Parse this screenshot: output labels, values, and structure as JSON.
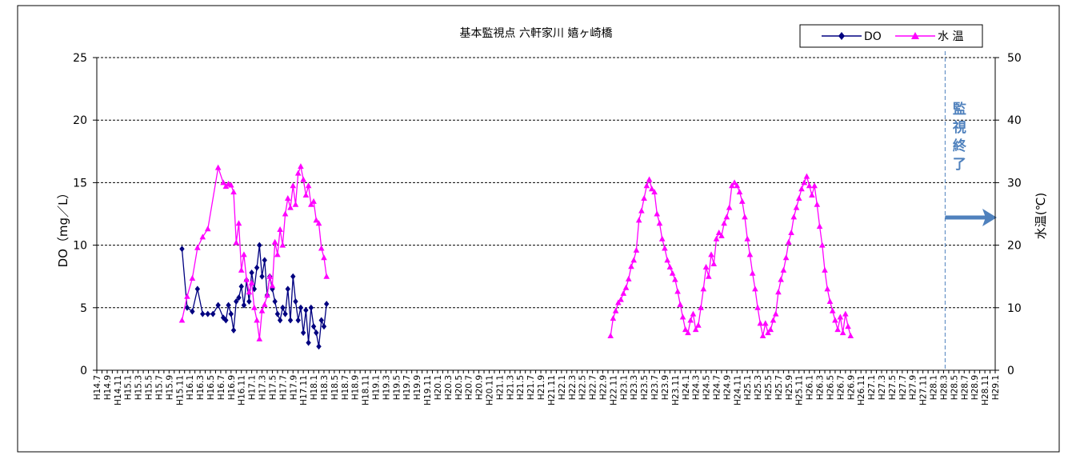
{
  "colors": {
    "do_series": "#000080",
    "temp_series": "#ff00ff",
    "monitor_end": "#4f81bd",
    "grid": "#000000"
  },
  "chart_data": {
    "type": "line",
    "title": "基本監視点 六軒家川 嬉ヶ崎橋",
    "ylabel": "DO（mg／L）",
    "y2label": "水温(℃)",
    "ylim": [
      0,
      25
    ],
    "y2lim": [
      0,
      50
    ],
    "yticks": [
      "0",
      "5",
      "10",
      "15",
      "20",
      "25"
    ],
    "y2ticks": [
      "0",
      "10",
      "20",
      "30",
      "40",
      "50"
    ],
    "grid": "horizontal dashed",
    "legend_position": "top-right",
    "x_start": "H14.7",
    "x_tick_labels": [
      "H14.7",
      "H14.9",
      "H14.11",
      "H15.1",
      "H15.3",
      "H15.5",
      "H15.7",
      "H15.9",
      "H15.11",
      "H16.1",
      "H16.3",
      "H16.5",
      "H16.7",
      "H16.9",
      "H16.11",
      "H17.1",
      "H17.3",
      "H17.5",
      "H17.7",
      "H17.9",
      "H17.11",
      "H18.1",
      "H18.3",
      "H18.5",
      "H18.7",
      "H18.9",
      "H18.11",
      "H19.1",
      "H19.3",
      "H19.5",
      "H19.7",
      "H19.9",
      "H19.11",
      "H20.1",
      "H20.3",
      "H20.5",
      "H20.7",
      "H20.9",
      "H20.11",
      "H21.1",
      "H21.3",
      "H21.5",
      "H21.7",
      "H21.9",
      "H21.11",
      "H22.1",
      "H22.3",
      "H22.5",
      "H22.7",
      "H22.9",
      "H22.11",
      "H23.1",
      "H23.3",
      "H23.5",
      "H23.7",
      "H23.9",
      "H23.11",
      "H24.1",
      "H24.3",
      "H24.5",
      "H24.7",
      "H24.9",
      "H24.11",
      "H25.1",
      "H25.3",
      "H25.5",
      "H25.7",
      "H25.9",
      "H25.11",
      "H26.1",
      "H26.3",
      "H26.5",
      "H26.7",
      "H26.9",
      "H26.11",
      "H27.1",
      "H27.3",
      "H27.5",
      "H27.7",
      "H27.9",
      "H27.11",
      "H28.1",
      "H28.3",
      "H28.5",
      "H28.7",
      "H28.9",
      "H28.11",
      "H29.1"
    ],
    "monitor_end_month": 164.3,
    "monitor_end_label": [
      "監",
      "視",
      "終",
      "了"
    ],
    "series": [
      {
        "name": "DO",
        "axis": "left",
        "marker": "diamond",
        "segments": [
          [
            [
              16.5,
              9.7
            ],
            [
              17.5,
              5.0
            ],
            [
              18.5,
              4.7
            ],
            [
              19.5,
              6.5
            ],
            [
              20.5,
              4.5
            ],
            [
              21.5,
              4.5
            ],
            [
              22.5,
              4.5
            ],
            [
              23.5,
              5.2
            ],
            [
              24.5,
              4.2
            ],
            [
              25,
              4.0
            ],
            [
              25.5,
              5.2
            ],
            [
              26,
              4.5
            ],
            [
              26.5,
              3.2
            ],
            [
              27,
              5.5
            ],
            [
              27.5,
              5.8
            ],
            [
              28,
              6.7
            ],
            [
              28.5,
              5.2
            ],
            [
              29,
              7.2
            ],
            [
              29.5,
              5.5
            ],
            [
              30,
              7.8
            ],
            [
              30.5,
              6.5
            ],
            [
              31,
              8.2
            ],
            [
              31.5,
              10.0
            ],
            [
              32,
              7.5
            ],
            [
              32.5,
              8.8
            ],
            [
              33,
              6.0
            ],
            [
              33.5,
              7.5
            ],
            [
              34,
              6.5
            ],
            [
              34.5,
              5.5
            ],
            [
              35,
              4.5
            ],
            [
              35.5,
              4.0
            ],
            [
              36,
              5.0
            ],
            [
              36.5,
              4.5
            ],
            [
              37,
              6.5
            ],
            [
              37.5,
              4.0
            ],
            [
              38,
              7.5
            ],
            [
              38.5,
              5.5
            ],
            [
              39,
              4.0
            ],
            [
              39.5,
              5.0
            ],
            [
              40,
              3.0
            ],
            [
              40.5,
              4.8
            ],
            [
              41,
              2.2
            ],
            [
              41.5,
              5.0
            ],
            [
              42,
              3.5
            ],
            [
              42.5,
              3.0
            ],
            [
              43,
              1.9
            ],
            [
              43.5,
              4.0
            ],
            [
              44,
              3.5
            ],
            [
              44.5,
              5.3
            ]
          ]
        ]
      },
      {
        "name": "水 温",
        "axis": "right",
        "marker": "triangle",
        "segments": [
          [
            [
              16.5,
              8.0
            ],
            [
              17.5,
              11.8
            ],
            [
              18.5,
              14.7
            ],
            [
              19.5,
              19.6
            ],
            [
              20.5,
              21.3
            ],
            [
              21.5,
              22.6
            ],
            [
              23.5,
              32.4
            ],
            [
              24.5,
              30.0
            ],
            [
              25,
              29.4
            ],
            [
              25.5,
              29.8
            ],
            [
              26,
              29.6
            ],
            [
              26.5,
              28.5
            ],
            [
              27,
              20.4
            ],
            [
              27.5,
              23.5
            ],
            [
              28,
              16.0
            ],
            [
              28.5,
              18.5
            ],
            [
              29,
              14.5
            ],
            [
              29.5,
              12.5
            ],
            [
              30,
              14.0
            ],
            [
              30.5,
              10.0
            ],
            [
              31,
              8.0
            ],
            [
              31.5,
              5.0
            ],
            [
              32,
              9.5
            ],
            [
              32.5,
              10.5
            ],
            [
              33,
              12.0
            ],
            [
              33.5,
              15.0
            ],
            [
              34,
              13.5
            ],
            [
              34.5,
              20.5
            ],
            [
              35,
              18.5
            ],
            [
              35.5,
              22.5
            ],
            [
              36,
              20.0
            ],
            [
              36.5,
              25.0
            ],
            [
              37,
              27.5
            ],
            [
              37.5,
              26.0
            ],
            [
              38,
              29.5
            ],
            [
              38.5,
              26.5
            ],
            [
              39,
              31.5
            ],
            [
              39.5,
              32.6
            ],
            [
              40,
              30.5
            ],
            [
              40.5,
              28.0
            ],
            [
              41,
              29.5
            ],
            [
              41.5,
              26.5
            ],
            [
              42,
              27.0
            ],
            [
              42.5,
              24.0
            ],
            [
              43,
              23.5
            ],
            [
              43.5,
              19.5
            ],
            [
              44,
              18.0
            ],
            [
              44.5,
              15.0
            ]
          ],
          [
            [
              99.5,
              5.5
            ],
            [
              100,
              8.3
            ],
            [
              100.5,
              9.5
            ],
            [
              101,
              10.8
            ],
            [
              101.5,
              11.3
            ],
            [
              102,
              12.3
            ],
            [
              102.5,
              13.2
            ],
            [
              103,
              14.6
            ],
            [
              103.5,
              16.6
            ],
            [
              104,
              17.6
            ],
            [
              104.5,
              19.2
            ],
            [
              105,
              24.0
            ],
            [
              105.5,
              25.5
            ],
            [
              106,
              27.5
            ],
            [
              106.5,
              29.5
            ],
            [
              107,
              30.5
            ],
            [
              107.5,
              29.0
            ],
            [
              108,
              28.5
            ],
            [
              108.5,
              25.0
            ],
            [
              109,
              23.5
            ],
            [
              109.5,
              21.0
            ],
            [
              110,
              19.5
            ],
            [
              110.5,
              17.6
            ],
            [
              111,
              16.5
            ],
            [
              111.5,
              15.5
            ],
            [
              112,
              14.5
            ],
            [
              112.5,
              12.6
            ],
            [
              113,
              10.5
            ],
            [
              113.5,
              8.5
            ],
            [
              114,
              6.5
            ],
            [
              114.5,
              6.0
            ],
            [
              115,
              8.0
            ],
            [
              115.5,
              9.0
            ],
            [
              116,
              6.5
            ],
            [
              116.5,
              7.2
            ],
            [
              117,
              10.0
            ],
            [
              117.5,
              13.0
            ],
            [
              118,
              16.5
            ],
            [
              118.5,
              15.0
            ],
            [
              119,
              18.5
            ],
            [
              119.5,
              17.0
            ],
            [
              120,
              21.0
            ],
            [
              120.5,
              22.0
            ],
            [
              121,
              21.5
            ],
            [
              121.5,
              23.5
            ],
            [
              122,
              24.5
            ],
            [
              122.5,
              26.0
            ],
            [
              123,
              29.5
            ],
            [
              123.5,
              30.0
            ],
            [
              124,
              29.5
            ],
            [
              124.5,
              28.5
            ],
            [
              125,
              27.0
            ],
            [
              125.5,
              24.5
            ],
            [
              126,
              21.0
            ],
            [
              126.5,
              18.5
            ],
            [
              127,
              15.5
            ],
            [
              127.5,
              13.0
            ],
            [
              128,
              10.0
            ],
            [
              128.5,
              7.5
            ],
            [
              129,
              5.5
            ],
            [
              129.5,
              7.5
            ],
            [
              130,
              6.0
            ],
            [
              130.5,
              6.5
            ],
            [
              131,
              8.0
            ],
            [
              131.5,
              9.0
            ],
            [
              132,
              12.5
            ],
            [
              132.5,
              14.5
            ],
            [
              133,
              16.0
            ],
            [
              133.5,
              18.0
            ],
            [
              134,
              20.5
            ],
            [
              134.5,
              22.0
            ],
            [
              135,
              24.5
            ],
            [
              135.5,
              26.0
            ],
            [
              136,
              27.5
            ],
            [
              136.5,
              29.0
            ],
            [
              137,
              30.0
            ],
            [
              137.5,
              31.0
            ],
            [
              138,
              29.5
            ],
            [
              138.5,
              28.0
            ],
            [
              139,
              29.5
            ],
            [
              139.5,
              26.5
            ],
            [
              140,
              23.0
            ],
            [
              140.5,
              20.0
            ],
            [
              141,
              16.0
            ],
            [
              141.5,
              13.0
            ],
            [
              142,
              11.0
            ],
            [
              142.5,
              9.5
            ],
            [
              143,
              8.0
            ],
            [
              143.5,
              6.5
            ],
            [
              144,
              8.5
            ],
            [
              144.5,
              6.0
            ],
            [
              145,
              9.0
            ],
            [
              145.5,
              7.0
            ],
            [
              146,
              5.5
            ]
          ]
        ]
      }
    ]
  }
}
